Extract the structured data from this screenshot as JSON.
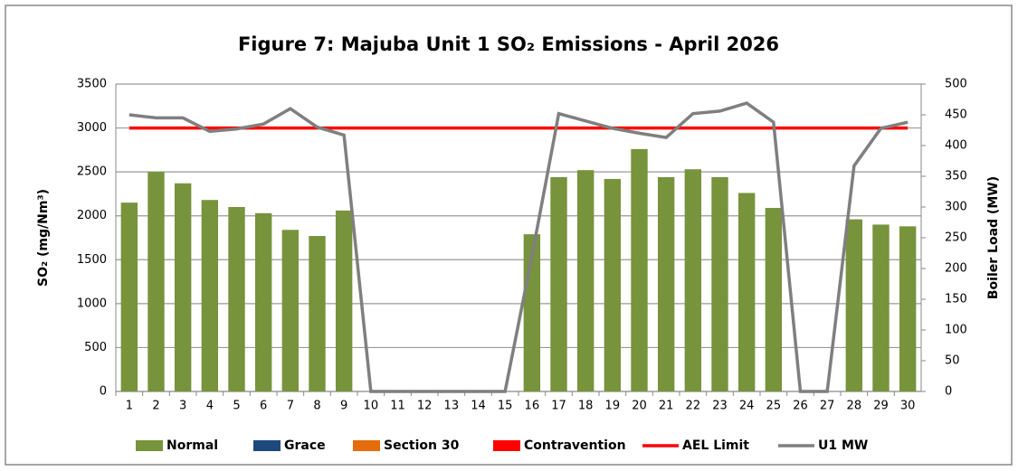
{
  "chart_data": {
    "type": "bar",
    "title": "Figure 7: Majuba Unit 1 SO₂ Emissions - April 2026",
    "y_label": "SO₂  (mg/Nm³)",
    "y2_label": "Boiler Load (MW)",
    "categories": [
      "1",
      "2",
      "3",
      "4",
      "5",
      "6",
      "7",
      "8",
      "9",
      "10",
      "11",
      "12",
      "13",
      "14",
      "15",
      "16",
      "17",
      "18",
      "19",
      "20",
      "21",
      "22",
      "23",
      "24",
      "25",
      "26",
      "27",
      "28",
      "29",
      "30"
    ],
    "series": [
      {
        "name": "Normal",
        "color": "#77933c",
        "kind": "bar",
        "values": [
          2150,
          2500,
          2370,
          2180,
          2100,
          2030,
          1840,
          1770,
          2060,
          0,
          0,
          0,
          0,
          0,
          0,
          1790,
          2440,
          2520,
          2420,
          2760,
          2440,
          2530,
          2440,
          2260,
          2090,
          0,
          0,
          1960,
          1900,
          1880
        ]
      },
      {
        "name": "Grace",
        "color": "#1f497d",
        "kind": "bar",
        "values": [
          0,
          0,
          0,
          0,
          0,
          0,
          0,
          0,
          0,
          0,
          0,
          0,
          0,
          0,
          0,
          0,
          0,
          0,
          0,
          0,
          0,
          0,
          0,
          0,
          0,
          0,
          0,
          0,
          0,
          0
        ]
      },
      {
        "name": "Section 30",
        "color": "#e46c0a",
        "kind": "bar",
        "values": [
          0,
          0,
          0,
          0,
          0,
          0,
          0,
          0,
          0,
          0,
          0,
          0,
          0,
          0,
          0,
          0,
          0,
          0,
          0,
          0,
          0,
          0,
          0,
          0,
          0,
          0,
          0,
          0,
          0,
          0
        ]
      },
      {
        "name": "Contravention",
        "color": "#ff0000",
        "kind": "bar",
        "values": [
          0,
          0,
          0,
          0,
          0,
          0,
          0,
          0,
          0,
          0,
          0,
          0,
          0,
          0,
          0,
          0,
          0,
          0,
          0,
          0,
          0,
          0,
          0,
          0,
          0,
          0,
          0,
          0,
          0,
          0
        ]
      },
      {
        "name": "AEL Limit",
        "color": "#ff0000",
        "kind": "line",
        "values": [
          3000,
          3000,
          3000,
          3000,
          3000,
          3000,
          3000,
          3000,
          3000,
          3000,
          3000,
          3000,
          3000,
          3000,
          3000,
          3000,
          3000,
          3000,
          3000,
          3000,
          3000,
          3000,
          3000,
          3000,
          3000,
          3000,
          3000,
          3000,
          3000,
          3000
        ]
      },
      {
        "name": "U1 MW",
        "color": "#7f7f7f",
        "kind": "line",
        "axis": "y2",
        "values": [
          450,
          445,
          445,
          423,
          427,
          435,
          460,
          430,
          417,
          0,
          0,
          0,
          0,
          0,
          0,
          220,
          452,
          440,
          428,
          420,
          413,
          452,
          456,
          469,
          438,
          0,
          0,
          367,
          428,
          438
        ]
      }
    ],
    "ylim": [
      0,
      3500
    ],
    "yticks": [
      0,
      500,
      1000,
      1500,
      2000,
      2500,
      3000,
      3500
    ],
    "y2lim": [
      0,
      500
    ],
    "y2ticks": [
      0,
      50,
      100,
      150,
      200,
      250,
      300,
      350,
      400,
      450,
      500
    ],
    "grid": true,
    "legend": "bottom"
  }
}
